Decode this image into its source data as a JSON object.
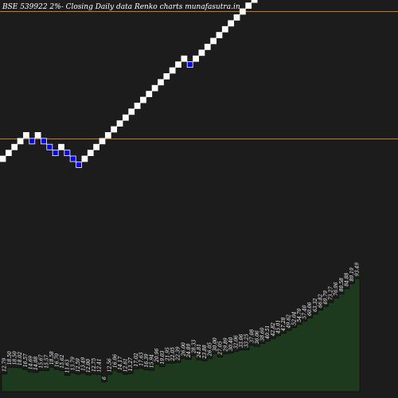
{
  "chart_data": {
    "type": "renko",
    "title": "BSE 539922  2%-  Closing Daily data  Renko  charts munafasutra.in",
    "colors": {
      "background": "#1c1c1c",
      "up_brick": "#ffffff",
      "down_brick": "#0000ff",
      "reference_line": "#c77a1f",
      "volume_fill": "#1e3a1e"
    },
    "reference_levels": [
      94.07,
      61.2
    ],
    "bricks": [
      {
        "dir": "up",
        "value": 57.74
      },
      {
        "dir": "up",
        "value": 58.89
      },
      {
        "dir": "up",
        "value": 60.07
      },
      {
        "dir": "up",
        "value": 61.27
      },
      {
        "dir": "up",
        "value": 62.5
      },
      {
        "dir": "down",
        "value": 61.27
      },
      {
        "dir": "up",
        "value": 62.5
      },
      {
        "dir": "down",
        "value": 61.27
      },
      {
        "dir": "down",
        "value": 60.07
      },
      {
        "dir": "down",
        "value": 58.89
      },
      {
        "dir": "up",
        "value": 60.07
      },
      {
        "dir": "down",
        "value": 58.89
      },
      {
        "dir": "down",
        "value": 57.74
      },
      {
        "dir": "down",
        "value": 56.61
      },
      {
        "dir": "up",
        "value": 57.74
      },
      {
        "dir": "up",
        "value": 58.89
      },
      {
        "dir": "up",
        "value": 60.07
      },
      {
        "dir": "up",
        "value": 61.27
      },
      {
        "dir": "up",
        "value": 62.5
      },
      {
        "dir": "up",
        "value": 63.75
      },
      {
        "dir": "up",
        "value": 65.02
      },
      {
        "dir": "up",
        "value": 66.32
      },
      {
        "dir": "up",
        "value": 67.65
      },
      {
        "dir": "up",
        "value": 69.0
      },
      {
        "dir": "up",
        "value": 70.38
      },
      {
        "dir": "up",
        "value": 71.79
      },
      {
        "dir": "up",
        "value": 73.23
      },
      {
        "dir": "up",
        "value": 74.69
      },
      {
        "dir": "up",
        "value": 76.19
      },
      {
        "dir": "up",
        "value": 77.71
      },
      {
        "dir": "up",
        "value": 79.26
      },
      {
        "dir": "up",
        "value": 80.85
      },
      {
        "dir": "down",
        "value": 79.26
      },
      {
        "dir": "up",
        "value": 80.85
      },
      {
        "dir": "up",
        "value": 82.47
      },
      {
        "dir": "up",
        "value": 84.12
      },
      {
        "dir": "up",
        "value": 85.8
      },
      {
        "dir": "up",
        "value": 87.51
      },
      {
        "dir": "up",
        "value": 89.26
      },
      {
        "dir": "up",
        "value": 91.05
      },
      {
        "dir": "up",
        "value": 92.87
      },
      {
        "dir": "up",
        "value": 94.73
      },
      {
        "dir": "up",
        "value": 96.62
      },
      {
        "dir": "up",
        "value": 98.56
      },
      {
        "dir": "up",
        "value": 100.53
      },
      {
        "dir": "up",
        "value": 102.54
      },
      {
        "dir": "up",
        "value": 104.59
      }
    ],
    "volume_labels": [
      "12.79",
      "18.50",
      "18.50",
      "18.02",
      "16.57",
      "14.69",
      "14.08",
      "15.67",
      "15.57",
      "18.58",
      "16.70",
      "15.62",
      "11.63",
      "13.79",
      "12.59",
      "13.49",
      "12.00",
      "12.75",
      "12.41",
      "6",
      "12.56",
      "16.06",
      "14.17",
      "12.61",
      "13.27",
      "17.02",
      "17.63",
      "16.39",
      "15.94",
      "20.96",
      "19.03",
      "21.95",
      "22.05",
      "22.39",
      "26.00",
      "24.89",
      "28.33",
      "24.81",
      "23.88",
      "26.05",
      "30.00",
      "27.05",
      "29.89",
      "30.40",
      "32.06",
      "33.06",
      "33.25",
      "37.08",
      "36.06",
      "38.60",
      "40.51",
      "42.82",
      "45.01",
      "47.28",
      "49.62",
      "52.04",
      "54.70",
      "57.40",
      "60.06",
      "63.32",
      "66.82",
      "69.79",
      "73.27",
      "76.96",
      "80.58",
      "84.88",
      "89.19",
      "93.49"
    ]
  }
}
